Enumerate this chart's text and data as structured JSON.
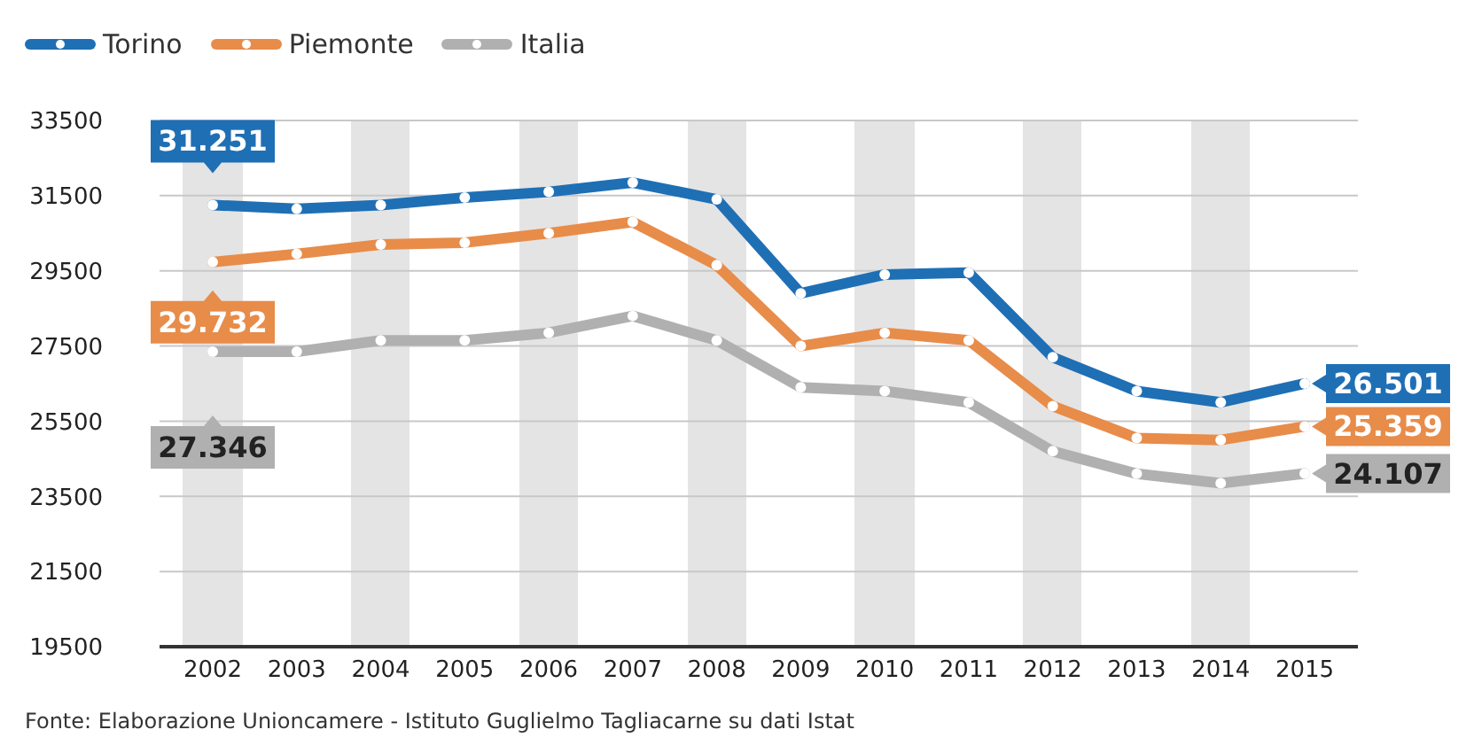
{
  "chart_data": {
    "type": "line",
    "categories": [
      "2002",
      "2003",
      "2004",
      "2005",
      "2006",
      "2007",
      "2008",
      "2009",
      "2010",
      "2011",
      "2012",
      "2013",
      "2014",
      "2015"
    ],
    "series": [
      {
        "name": "Torino",
        "color": "#1f6fb5",
        "values": [
          31251,
          31150,
          31250,
          31450,
          31600,
          31850,
          31400,
          28900,
          29400,
          29450,
          27200,
          26300,
          26000,
          26501
        ],
        "value_labels": [
          "31.251",
          null,
          null,
          null,
          null,
          null,
          null,
          null,
          null,
          null,
          null,
          null,
          null,
          "26.501"
        ]
      },
      {
        "name": "Piemonte",
        "color": "#e88c4a",
        "values": [
          29732,
          29950,
          30200,
          30250,
          30500,
          30800,
          29650,
          27500,
          27850,
          27650,
          25900,
          25050,
          25000,
          25359
        ],
        "value_labels": [
          "29.732",
          null,
          null,
          null,
          null,
          null,
          null,
          null,
          null,
          null,
          null,
          null,
          null,
          "25.359"
        ]
      },
      {
        "name": "Italia",
        "color": "#b0b0b0",
        "values": [
          27346,
          27350,
          27650,
          27650,
          27850,
          28300,
          27650,
          26400,
          26300,
          26000,
          24700,
          24100,
          23850,
          24107
        ],
        "value_labels": [
          "27.346",
          null,
          null,
          null,
          null,
          null,
          null,
          null,
          null,
          null,
          null,
          null,
          null,
          "24.107"
        ]
      }
    ],
    "ylim": [
      19500,
      33500
    ],
    "yticks": [
      19500,
      21500,
      23500,
      25500,
      27500,
      29500,
      31500,
      33500
    ],
    "bands": [
      {
        "axis": "x",
        "from": "2002",
        "to": "2002",
        "color": "#e4e4e4"
      },
      {
        "axis": "x",
        "from": "2004",
        "to": "2004",
        "color": "#e4e4e4"
      },
      {
        "axis": "x",
        "from": "2006",
        "to": "2006",
        "color": "#e4e4e4"
      },
      {
        "axis": "x",
        "from": "2008",
        "to": "2008",
        "color": "#e4e4e4"
      },
      {
        "axis": "x",
        "from": "2010",
        "to": "2010",
        "color": "#e4e4e4"
      },
      {
        "axis": "x",
        "from": "2012",
        "to": "2012",
        "color": "#e4e4e4"
      },
      {
        "axis": "x",
        "from": "2014",
        "to": "2014",
        "color": "#e4e4e4"
      }
    ],
    "grid": "y",
    "legend": "top left",
    "marker": "circle",
    "line_style": "solid",
    "annotations": [
      "Fonte: Elaborazione Unioncamere - Istituto Guglielmo Tagliacarne su dati Istat"
    ]
  }
}
